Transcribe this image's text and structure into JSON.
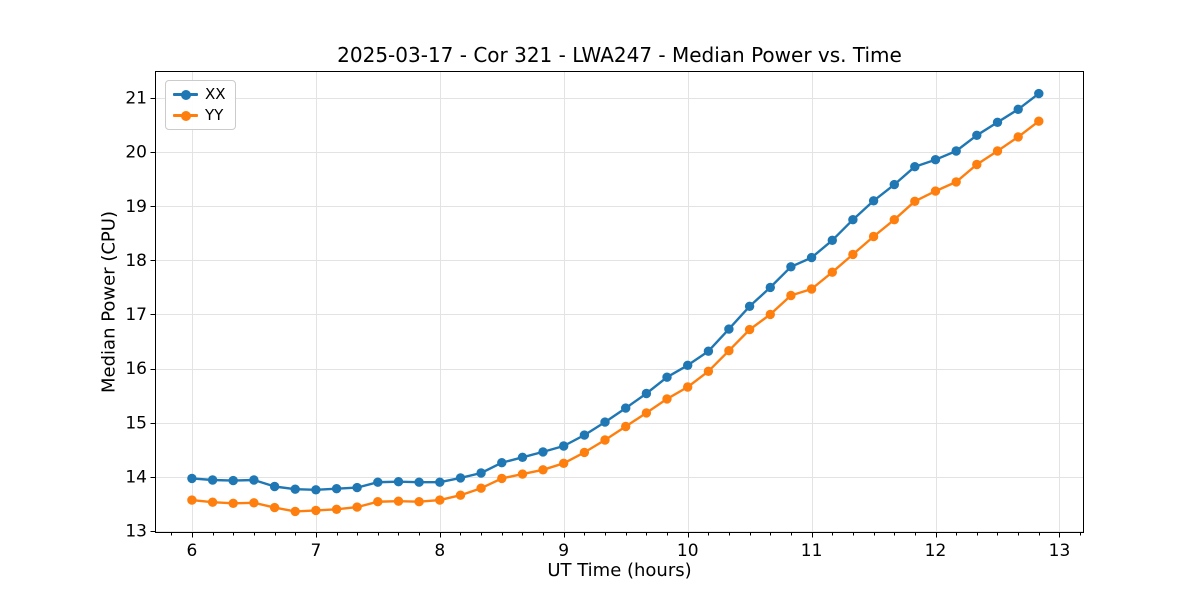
{
  "chart_data": {
    "type": "line",
    "title": "2025-03-17 - Cor 321 - LWA247 - Median Power vs. Time",
    "xlabel": "UT Time (hours)",
    "ylabel": "Median Power (CPU)",
    "xlim": [
      5.71,
      13.19
    ],
    "ylim": [
      12.98,
      21.48
    ],
    "x_ticks": [
      6,
      7,
      8,
      9,
      10,
      11,
      12,
      13
    ],
    "y_ticks": [
      13,
      14,
      15,
      16,
      17,
      18,
      19,
      20,
      21
    ],
    "x_minor_tick_step": 0.1667,
    "grid": true,
    "legend_position": "upper left",
    "marker": "circle",
    "colors": {
      "grid": "#e3e3e3",
      "spine": "#000000",
      "text": "#000000",
      "background": "#ffffff"
    },
    "x": [
      6.0,
      6.167,
      6.333,
      6.5,
      6.667,
      6.833,
      7.0,
      7.167,
      7.333,
      7.5,
      7.667,
      7.833,
      8.0,
      8.167,
      8.333,
      8.5,
      8.667,
      8.833,
      9.0,
      9.167,
      9.333,
      9.5,
      9.667,
      9.833,
      10.0,
      10.167,
      10.333,
      10.5,
      10.667,
      10.833,
      11.0,
      11.167,
      11.333,
      11.5,
      11.667,
      11.833,
      12.0,
      12.167,
      12.333,
      12.5,
      12.667,
      12.833
    ],
    "series": [
      {
        "name": "XX",
        "color": "#1f77b4",
        "values": [
          13.97,
          13.94,
          13.93,
          13.94,
          13.82,
          13.77,
          13.76,
          13.78,
          13.8,
          13.9,
          13.91,
          13.9,
          13.9,
          13.98,
          14.07,
          14.26,
          14.36,
          14.46,
          14.57,
          14.77,
          15.01,
          15.27,
          15.54,
          15.84,
          16.06,
          16.32,
          16.73,
          17.15,
          17.5,
          17.88,
          18.05,
          18.37,
          18.75,
          19.1,
          19.4,
          19.73,
          19.86,
          20.02,
          20.31,
          20.55,
          20.79,
          21.08
        ]
      },
      {
        "name": "YY",
        "color": "#ff7f0e",
        "values": [
          13.57,
          13.53,
          13.51,
          13.52,
          13.43,
          13.36,
          13.38,
          13.4,
          13.44,
          13.54,
          13.55,
          13.54,
          13.57,
          13.66,
          13.79,
          13.97,
          14.05,
          14.13,
          14.25,
          14.45,
          14.68,
          14.93,
          15.18,
          15.44,
          15.66,
          15.95,
          16.33,
          16.72,
          17.0,
          17.35,
          17.47,
          17.78,
          18.11,
          18.44,
          18.75,
          19.09,
          19.28,
          19.45,
          19.77,
          20.02,
          20.28,
          20.57
        ]
      }
    ]
  }
}
